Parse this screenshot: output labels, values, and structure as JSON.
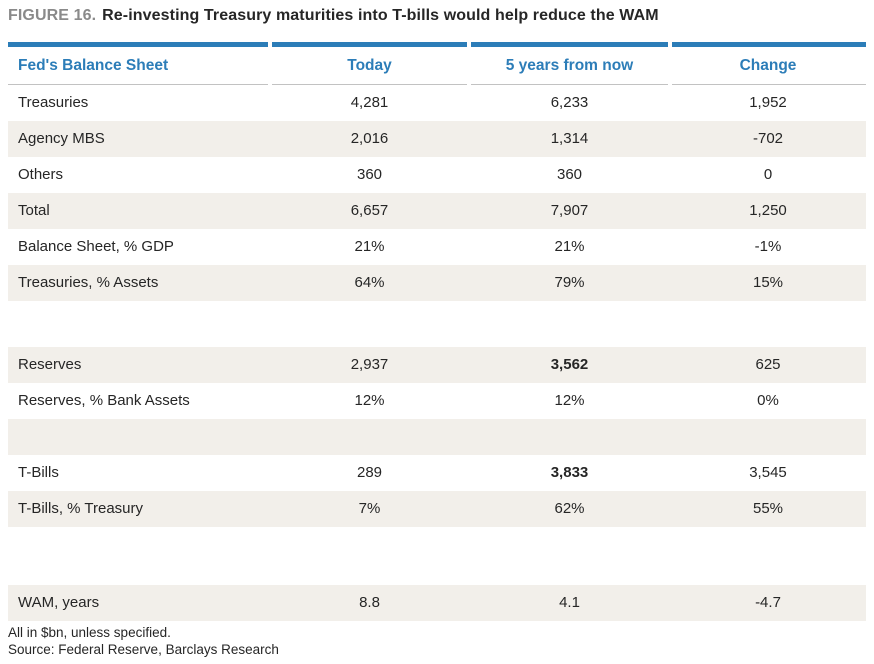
{
  "figure": {
    "label": "FIGURE 16.",
    "title": "Re-investing Treasury maturities into T-bills would help reduce the WAM"
  },
  "table": {
    "columns": [
      "Fed's Balance Sheet",
      "Today",
      "5 years from now",
      "Change"
    ],
    "rows": [
      {
        "label": "Treasuries",
        "today": "4,281",
        "future": "6,233",
        "change": "1,952",
        "shaded": false
      },
      {
        "label": "Agency MBS",
        "today": "2,016",
        "future": "1,314",
        "change": "-702",
        "shaded": true
      },
      {
        "label": "Others",
        "today": "360",
        "future": "360",
        "change": "0",
        "shaded": false
      },
      {
        "label": "Total",
        "today": "6,657",
        "future": "7,907",
        "change": "1,250",
        "shaded": true
      },
      {
        "label": "Balance Sheet, % GDP",
        "today": "21%",
        "future": "21%",
        "change": "-1%",
        "shaded": false
      },
      {
        "label": "Treasuries, % Assets",
        "today": "64%",
        "future": "79%",
        "change": "15%",
        "shaded": true
      },
      {
        "spacer": true,
        "height": 46,
        "shaded": false
      },
      {
        "label": "Reserves",
        "today": "2,937",
        "future": "3,562",
        "change": "625",
        "shaded": true,
        "bold_future": true
      },
      {
        "label": "Reserves, % Bank Assets",
        "today": "12%",
        "future": "12%",
        "change": "0%",
        "shaded": false
      },
      {
        "spacer": true,
        "height": 36,
        "shaded": true
      },
      {
        "label": "T-Bills",
        "today": "289",
        "future": "3,833",
        "change": "3,545",
        "shaded": false,
        "bold_future": true
      },
      {
        "label": "T-Bills, % Treasury",
        "today": "7%",
        "future": "62%",
        "change": "55%",
        "shaded": true
      },
      {
        "spacer": true,
        "height": 58,
        "shaded": false
      },
      {
        "label": "WAM, years",
        "today": "8.8",
        "future": "4.1",
        "change": "-4.7",
        "shaded": true
      }
    ]
  },
  "footnotes": [
    "All in $bn, unless specified.",
    "Source: Federal Reserve, Barclays Research"
  ],
  "colors": {
    "accent": "#2C7DB8",
    "row_shade": "#F2EFEA",
    "text": "#262626",
    "figure_label": "#8A8A8A",
    "header_rule": "#C2C2C2"
  }
}
